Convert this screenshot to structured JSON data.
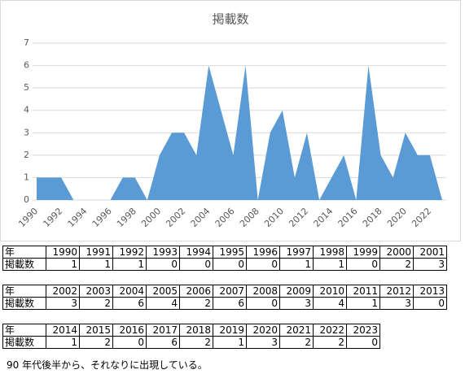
{
  "chart_data": {
    "type": "area",
    "title": "掲載数",
    "categories": [
      "1990",
      null,
      "1992",
      null,
      "1994",
      null,
      "1996",
      null,
      "1998",
      null,
      "2000",
      null,
      "2002",
      null,
      "2004",
      null,
      "2006",
      null,
      "2008",
      null,
      "2010",
      null,
      "2012",
      null,
      "2014",
      null,
      "2016",
      null,
      "2018",
      null,
      "2020",
      null,
      "2022",
      null
    ],
    "values": [
      1,
      1,
      1,
      0,
      0,
      0,
      0,
      1,
      1,
      0,
      2,
      3,
      3,
      2,
      6,
      4,
      2,
      6,
      0,
      3,
      4,
      1,
      3,
      0,
      1,
      2,
      0,
      6,
      2,
      1,
      3,
      2,
      2,
      0
    ],
    "color": "#5b9bd5",
    "ylim": [
      0,
      7
    ],
    "yticks": [
      0,
      1,
      2,
      3,
      4,
      5,
      6,
      7
    ],
    "grid": true
  },
  "tables": [
    {
      "rows": [
        [
          "年",
          "1990",
          "1991",
          "1992",
          "1993",
          "1994",
          "1995",
          "1996",
          "1997",
          "1998",
          "1999",
          "2000",
          "2001"
        ],
        [
          "掲載数",
          1,
          1,
          1,
          0,
          0,
          0,
          0,
          1,
          1,
          0,
          2,
          3
        ]
      ]
    },
    {
      "rows": [
        [
          "年",
          "2002",
          "2003",
          "2004",
          "2005",
          "2006",
          "2007",
          "2008",
          "2009",
          "2010",
          "2011",
          "2012",
          "2013"
        ],
        [
          "掲載数",
          3,
          2,
          6,
          4,
          2,
          6,
          0,
          3,
          4,
          1,
          3,
          0
        ]
      ]
    },
    {
      "rows": [
        [
          "年",
          "2014",
          "2015",
          "2016",
          "2017",
          "2018",
          "2019",
          "2020",
          "2021",
          "2022",
          "2023"
        ],
        [
          "掲載数",
          1,
          2,
          0,
          6,
          2,
          1,
          3,
          2,
          2,
          0
        ]
      ]
    }
  ],
  "caption": "90 年代後半から、それなりに出現している。"
}
